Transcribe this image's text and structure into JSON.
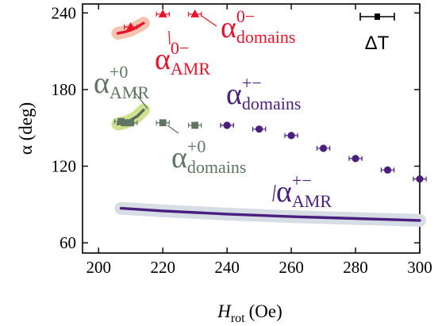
{
  "chart_data": {
    "type": "scatter",
    "title": "",
    "xlabel": {
      "main": "H",
      "sub": "rot",
      "unit": "(Oe)"
    },
    "ylabel": "α (deg)",
    "xlim": [
      195,
      300
    ],
    "ylim": [
      52,
      247
    ],
    "xticks": [
      200,
      220,
      240,
      260,
      280,
      300
    ],
    "yticks": [
      60,
      120,
      180,
      240
    ],
    "grid": false,
    "series": [
      {
        "id": "domains-0minus",
        "marker": "triangle",
        "color": "#e8142b",
        "x": [
          210,
          220,
          230
        ],
        "y": [
          229,
          239,
          239
        ],
        "xerr": 2
      },
      {
        "id": "domains-plus0",
        "marker": "square",
        "color": "#5e7564",
        "x": [
          207,
          208,
          210,
          220,
          230
        ],
        "y": [
          155,
          154,
          154,
          154,
          152
        ],
        "xerr": 2
      },
      {
        "id": "domains-plusminus",
        "marker": "circle",
        "color": "#4a1e7c",
        "x": [
          240,
          250,
          260,
          270,
          280,
          290,
          300
        ],
        "y": [
          152,
          149,
          144,
          134,
          126,
          117,
          110
        ],
        "xerr": 2
      }
    ],
    "curves": [
      {
        "id": "amr-0minus",
        "color": "#e8142b",
        "band_color": "#f5c3ae",
        "x": [
          206,
          208,
          210,
          212,
          214
        ],
        "y": [
          224,
          225,
          226.5,
          229,
          232
        ]
      },
      {
        "id": "amr-plus0",
        "color": "#546b5a",
        "band_color": "#cfe08e",
        "x": [
          206,
          208,
          210,
          212,
          214
        ],
        "y": [
          153,
          154,
          156,
          159,
          164
        ]
      },
      {
        "id": "amr-plusminus",
        "color": "#4a1e7c",
        "band_color": "#d6dde5",
        "x": [
          207,
          220,
          240,
          260,
          280,
          300
        ],
        "y": [
          87,
          85,
          82.5,
          80.5,
          79,
          77.5
        ]
      }
    ],
    "annotations": [
      {
        "id": "label-0minus-domains",
        "main": "α",
        "sup": "0−",
        "sub": "domains",
        "color": "#e8142b"
      },
      {
        "id": "label-0minus-amr",
        "main": "α",
        "sup": "0−",
        "sub": "AMR",
        "color": "#e8142b"
      },
      {
        "id": "label-plus0-amr",
        "main": "α",
        "sup": "+0",
        "sub": "AMR",
        "color": "#5e7564"
      },
      {
        "id": "label-plus0-domains",
        "main": "α",
        "sup": "+0",
        "sub": "domains",
        "color": "#5e7564"
      },
      {
        "id": "label-plusminus-domains",
        "main": "α",
        "sup": "+−",
        "sub": "domains",
        "color": "#4a1e7c"
      },
      {
        "id": "label-plusminus-amr",
        "main": "α",
        "sup": "+−",
        "sub": "AMR",
        "color": "#4a1e7c"
      }
    ],
    "legend": {
      "label": "ΔT",
      "placement": "top-right"
    }
  }
}
